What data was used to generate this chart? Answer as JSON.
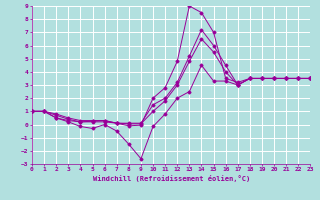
{
  "xlabel": "Windchill (Refroidissement éolien,°C)",
  "background_color": "#b2e0df",
  "grid_color": "#c8dede",
  "line_color": "#990099",
  "xlim": [
    0,
    23
  ],
  "ylim": [
    -3,
    9
  ],
  "xticks": [
    0,
    1,
    2,
    3,
    4,
    5,
    6,
    7,
    8,
    9,
    10,
    11,
    12,
    13,
    14,
    15,
    16,
    17,
    18,
    19,
    20,
    21,
    22,
    23
  ],
  "yticks": [
    -3,
    -2,
    -1,
    0,
    1,
    2,
    3,
    4,
    5,
    6,
    7,
    8,
    9
  ],
  "lines": [
    {
      "x": [
        0,
        1,
        2,
        3,
        4,
        5,
        6,
        7,
        8,
        9,
        10,
        11,
        12,
        13,
        14,
        15,
        16,
        17,
        18,
        19,
        20,
        21,
        22,
        23
      ],
      "y": [
        1,
        1,
        0.5,
        0.3,
        0.2,
        0.25,
        0.3,
        0.1,
        -0.1,
        -0.05,
        2.0,
        2.8,
        4.8,
        9.0,
        8.5,
        7.0,
        3.5,
        3.2,
        3.5,
        3.5,
        3.5,
        3.5,
        3.5,
        3.5
      ]
    },
    {
      "x": [
        0,
        1,
        2,
        3,
        4,
        5,
        6,
        7,
        8,
        9,
        10,
        11,
        12,
        13,
        14,
        15,
        16,
        17,
        18,
        19,
        20,
        21,
        22,
        23
      ],
      "y": [
        1,
        1,
        0.5,
        0.2,
        -0.15,
        -0.3,
        0.0,
        -0.5,
        -1.5,
        -2.6,
        -0.15,
        0.8,
        2.0,
        2.5,
        4.5,
        3.3,
        3.3,
        3.0,
        3.5,
        3.5,
        3.5,
        3.5,
        3.5,
        3.5
      ]
    },
    {
      "x": [
        0,
        1,
        2,
        3,
        4,
        5,
        6,
        7,
        8,
        9,
        10,
        11,
        12,
        13,
        14,
        15,
        16,
        17,
        18,
        19,
        20,
        21,
        22,
        23
      ],
      "y": [
        1,
        1,
        0.8,
        0.5,
        0.3,
        0.3,
        0.3,
        0.1,
        0.1,
        0.1,
        1.5,
        2.0,
        3.2,
        5.2,
        7.2,
        6.0,
        4.5,
        3.0,
        3.5,
        3.5,
        3.5,
        3.5,
        3.5,
        3.5
      ]
    },
    {
      "x": [
        0,
        1,
        2,
        3,
        4,
        5,
        6,
        7,
        8,
        9,
        10,
        11,
        12,
        13,
        14,
        15,
        16,
        17,
        18,
        19,
        20,
        21,
        22,
        23
      ],
      "y": [
        1,
        1,
        0.7,
        0.4,
        0.2,
        0.2,
        0.2,
        0.1,
        0.05,
        0.05,
        1.0,
        1.8,
        3.0,
        4.8,
        6.5,
        5.5,
        4.0,
        3.0,
        3.5,
        3.5,
        3.5,
        3.5,
        3.5,
        3.5
      ]
    }
  ]
}
